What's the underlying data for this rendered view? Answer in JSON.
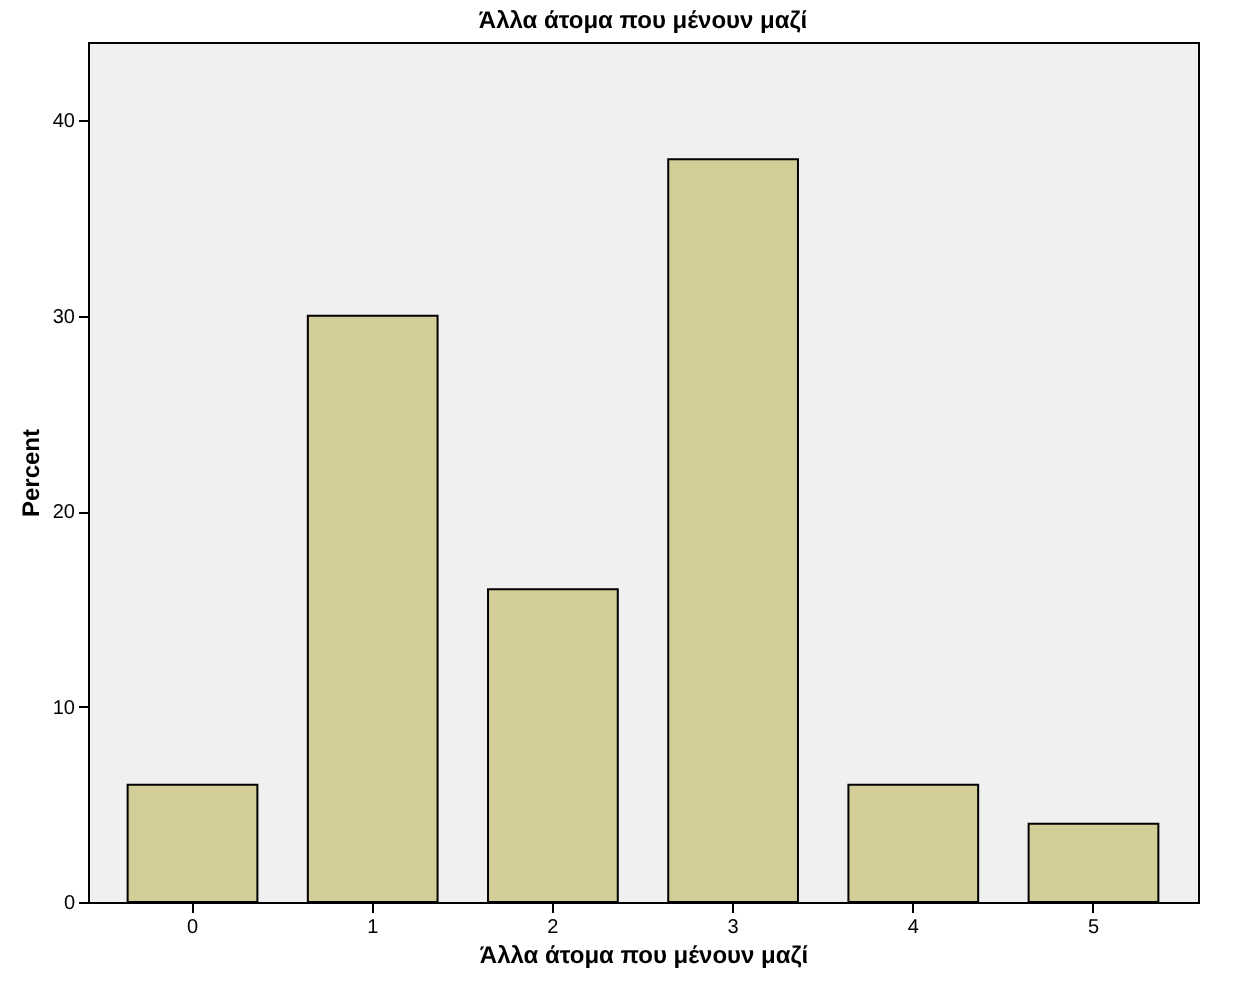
{
  "chart_data": {
    "type": "bar",
    "title": "Άλλα άτομα που  μένουν  μαζί",
    "xlabel": "Άλλα άτομα που  μένουν  μαζί",
    "ylabel": "Percent",
    "categories": [
      "0",
      "1",
      "2",
      "3",
      "4",
      "5"
    ],
    "values": [
      6,
      30,
      16,
      38,
      6,
      4
    ],
    "color": "#d3ce97",
    "ylim": [
      0,
      44
    ],
    "yticks": [
      0,
      10,
      20,
      30,
      40
    ],
    "grid": false
  }
}
